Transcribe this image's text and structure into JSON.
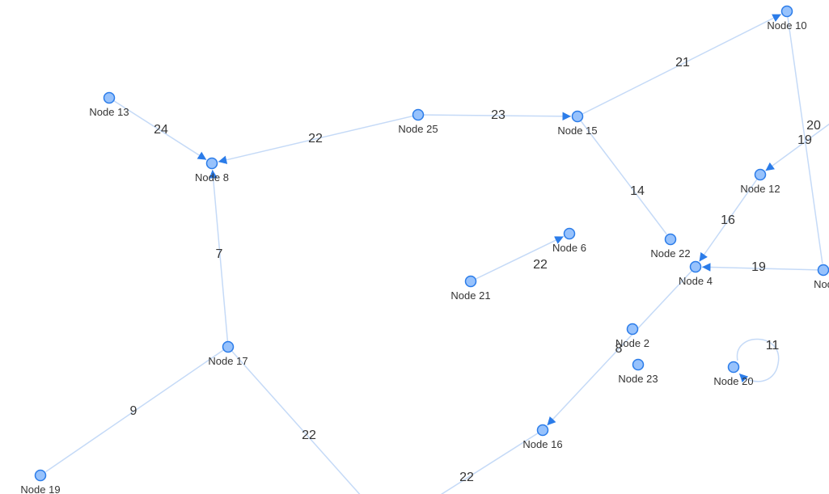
{
  "nodes": [
    {
      "label": "Node 10"
    },
    {
      "label": "Node 13"
    },
    {
      "label": "Node 25"
    },
    {
      "label": "Node 15"
    },
    {
      "label": "Node 8"
    },
    {
      "label": "Node 12"
    },
    {
      "label": "Node 6"
    },
    {
      "label": "Node 22"
    },
    {
      "label": "Node 4"
    },
    {
      "label": "Node 21"
    },
    {
      "label": "Nod"
    },
    {
      "label": "Node 2"
    },
    {
      "label": "Node 23"
    },
    {
      "label": "Node 20"
    },
    {
      "label": "Node 17"
    },
    {
      "label": "Node 16"
    },
    {
      "label": "Node 19"
    }
  ],
  "edges": [
    {
      "label": "24"
    },
    {
      "label": "22"
    },
    {
      "label": "23"
    },
    {
      "label": "21"
    },
    {
      "label": "14"
    },
    {
      "label": "16"
    },
    {
      "label": "20"
    },
    {
      "label": "19"
    },
    {
      "label": "19"
    },
    {
      "label": "7"
    },
    {
      "label": "22"
    },
    {
      "label": "8"
    },
    {
      "label": "22"
    },
    {
      "label": "9"
    },
    {
      "label": "22"
    },
    {
      "label": "11"
    }
  ]
}
